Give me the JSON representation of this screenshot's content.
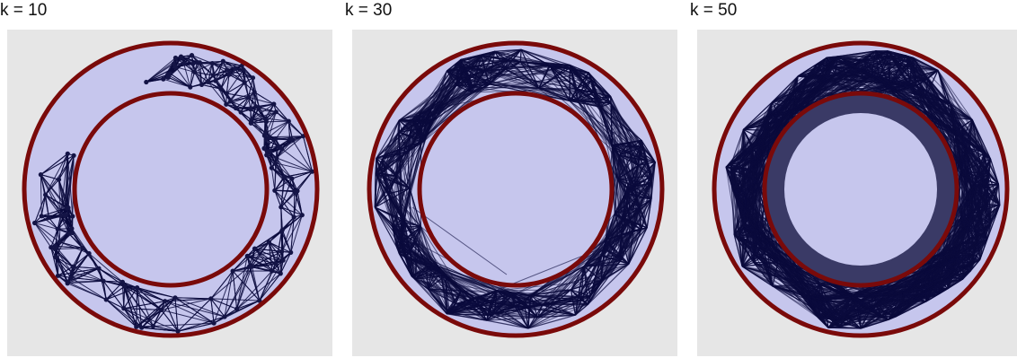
{
  "panels": [
    {
      "id": "k10",
      "title": "k = 10",
      "k": 10
    },
    {
      "id": "k30",
      "title": "k = 30",
      "k": 30
    },
    {
      "id": "k50",
      "title": "k = 50",
      "k": 50
    }
  ],
  "colors": {
    "background": "#e6e6e6",
    "disk_fill": "#c6c6ed",
    "ring_fill": "#bcbcea",
    "ring_border": "#7a0a0a",
    "edge": "#0b0b3d",
    "node": "#141446",
    "inner_dense": "#3a3a66"
  },
  "geometry_note": ""
}
